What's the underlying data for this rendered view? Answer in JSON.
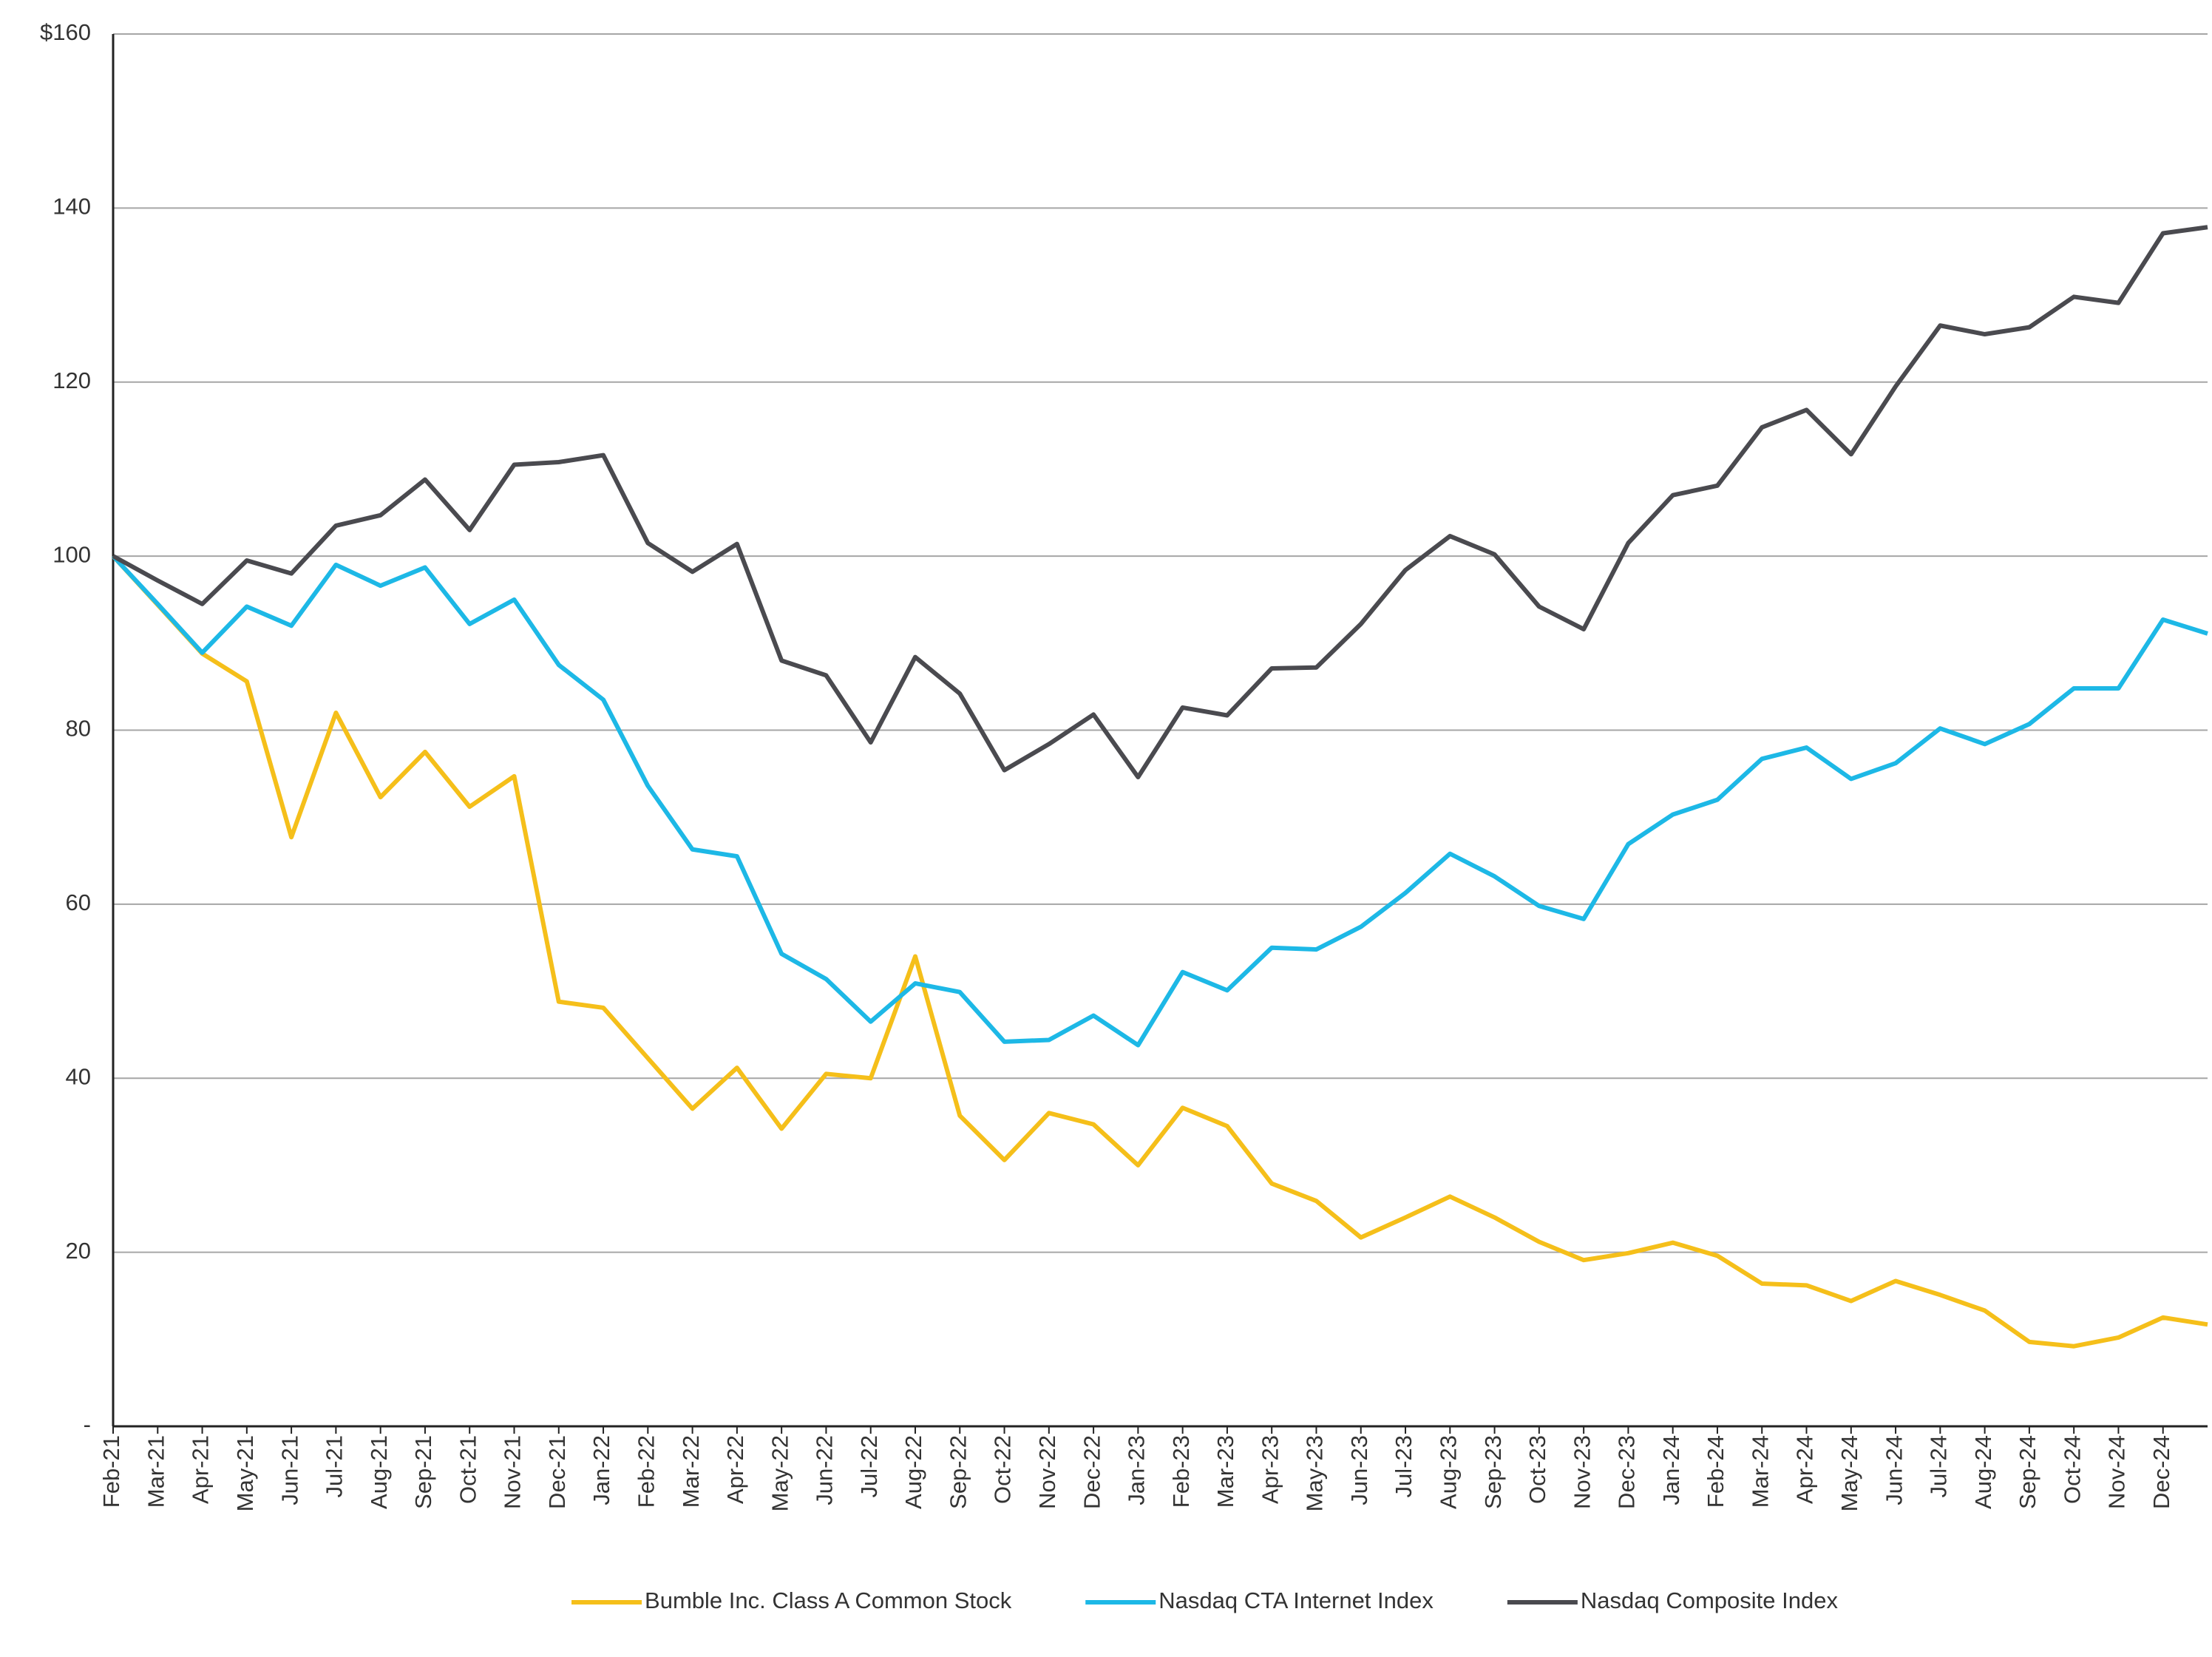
{
  "chart_data": {
    "type": "line",
    "categories": [
      "Feb-21",
      "Mar-21",
      "Apr-21",
      "May-21",
      "Jun-21",
      "Jul-21",
      "Aug-21",
      "Sep-21",
      "Oct-21",
      "Nov-21",
      "Dec-21",
      "Jan-22",
      "Feb-22",
      "Mar-22",
      "Apr-22",
      "May-22",
      "Jun-22",
      "Jul-22",
      "Aug-22",
      "Sep-22",
      "Oct-22",
      "Nov-22",
      "Dec-22",
      "Jan-23",
      "Feb-23",
      "Mar-23",
      "Apr-23",
      "May-23",
      "Jun-23",
      "Jul-23",
      "Aug-23",
      "Sep-23",
      "Oct-23",
      "Nov-23",
      "Dec-23",
      "Jan-24",
      "Feb-24",
      "Mar-24",
      "Apr-24",
      "May-24",
      "Jun-24",
      "Jul-24",
      "Aug-24",
      "Sep-24",
      "Oct-24",
      "Nov-24",
      "Dec-24",
      null
    ],
    "series": [
      {
        "name": "Bumble Inc. Class A Common Stock",
        "color": "#f5bf1a",
        "values": [
          100,
          94.4,
          88.8,
          85.6,
          67.7,
          82,
          72.3,
          77.5,
          71.2,
          74.7,
          48.8,
          48.1,
          42.3,
          36.5,
          41.2,
          34.2,
          40.5,
          40,
          54,
          35.7,
          30.6,
          36,
          34.7,
          30,
          36.6,
          34.5,
          27.9,
          25.9,
          21.7,
          24,
          26.4,
          24,
          21.2,
          19.1,
          19.9,
          21.1,
          19.6,
          16.4,
          16.2,
          14.4,
          16.7,
          15.1,
          13.3,
          9.7,
          9.2,
          10.2,
          12.5,
          11.7
        ]
      },
      {
        "name": "Nasdaq CTA Internet Index",
        "color": "#1db8e6",
        "values": [
          100,
          94.5,
          88.9,
          94.2,
          92,
          99,
          96.6,
          98.7,
          92.2,
          95,
          87.5,
          83.5,
          73.6,
          66.3,
          65.5,
          54.3,
          51.4,
          46.5,
          50.9,
          49.9,
          44.2,
          44.4,
          47.2,
          43.8,
          52.2,
          50.1,
          55,
          54.8,
          57.4,
          61.3,
          65.8,
          63.2,
          59.8,
          58.3,
          66.9,
          70.3,
          72,
          76.7,
          78,
          74.4,
          76.2,
          80.2,
          78.4,
          80.7,
          84.8,
          84.8,
          92.7,
          91.1
        ]
      },
      {
        "name": "Nasdaq Composite Index",
        "color": "#4a4a4f",
        "values": [
          100,
          97.2,
          94.5,
          99.5,
          98,
          103.5,
          104.7,
          108.8,
          103,
          110.5,
          110.8,
          111.6,
          101.5,
          98.2,
          101.4,
          88,
          86.3,
          78.6,
          88.4,
          84.2,
          75.4,
          78.4,
          81.8,
          74.6,
          82.6,
          81.7,
          87.1,
          87.2,
          92.2,
          98.4,
          102.3,
          100.2,
          94.2,
          91.6,
          101.5,
          107,
          108.1,
          114.8,
          116.8,
          111.7,
          119.5,
          126.5,
          125.5,
          126.3,
          129.8,
          129.1,
          137.1,
          137.8
        ]
      }
    ],
    "ylim": [
      0,
      160
    ],
    "yticks": [
      {
        "value": 0,
        "label": "-"
      },
      20,
      40,
      60,
      80,
      100,
      120,
      140,
      {
        "value": 160,
        "label": "$160"
      }
    ],
    "grid": true,
    "legend": "bottom"
  }
}
